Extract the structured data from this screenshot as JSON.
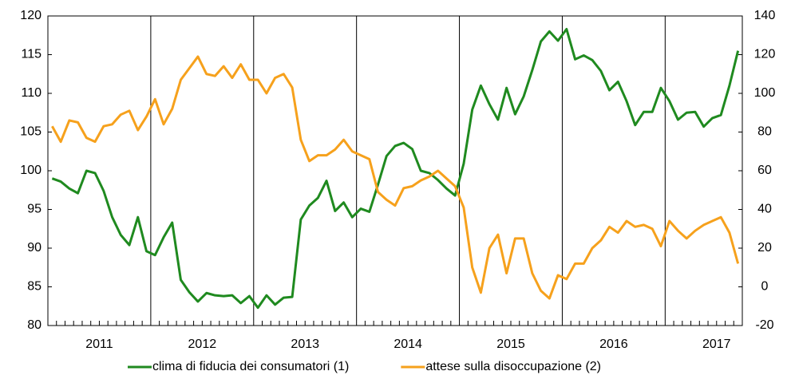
{
  "chart_data": {
    "type": "line",
    "categories": [
      null,
      null,
      null,
      null,
      null,
      null,
      "2011",
      null,
      null,
      null,
      null,
      null,
      null,
      null,
      null,
      null,
      null,
      null,
      "2012",
      null,
      null,
      null,
      null,
      null,
      null,
      null,
      null,
      null,
      null,
      null,
      "2013",
      null,
      null,
      null,
      null,
      null,
      null,
      null,
      null,
      null,
      null,
      null,
      "2014",
      null,
      null,
      null,
      null,
      null,
      null,
      null,
      null,
      null,
      null,
      null,
      "2015",
      null,
      null,
      null,
      null,
      null,
      null,
      null,
      null,
      null,
      null,
      null,
      "2016",
      null,
      null,
      null,
      null,
      null,
      null,
      null,
      null,
      null,
      null,
      null,
      "2017",
      null,
      null
    ],
    "series": [
      {
        "name": "clima di fiducia dei consumatori (1)",
        "color": "#1f8a1f",
        "axis": "y",
        "values": [
          99.0,
          98.6,
          97.7,
          97.1,
          100.0,
          99.7,
          97.4,
          94.0,
          91.7,
          90.4,
          94.0,
          89.6,
          89.1,
          91.4,
          93.3,
          85.9,
          84.3,
          83.1,
          84.2,
          83.9,
          83.8,
          83.9,
          82.9,
          83.8,
          82.3,
          83.9,
          82.7,
          83.6,
          83.7,
          93.7,
          95.5,
          96.5,
          98.7,
          94.8,
          95.9,
          94.0,
          95.1,
          94.7,
          98.2,
          101.9,
          103.2,
          103.6,
          102.8,
          100.0,
          99.7,
          98.8,
          97.7,
          96.8,
          100.9,
          107.9,
          111.0,
          108.6,
          106.6,
          110.7,
          107.3,
          109.6,
          113.0,
          116.7,
          118.0,
          116.8,
          118.3,
          114.4,
          114.9,
          114.3,
          112.9,
          110.4,
          111.5,
          109.0,
          105.9,
          107.6,
          107.6,
          110.7,
          109.0,
          106.6,
          107.5,
          107.6,
          105.7,
          106.8,
          107.2,
          111.0,
          115.5
        ]
      },
      {
        "name": "attese sulla disoccupazione (2)",
        "color": "#f6a11c",
        "axis": "y2",
        "values": [
          83,
          75,
          86,
          85,
          77,
          75,
          83,
          84,
          89,
          91,
          81,
          88,
          97,
          84,
          92,
          107,
          113,
          119,
          110,
          109,
          114,
          108,
          115,
          107,
          107,
          100,
          108,
          110,
          103,
          76,
          65,
          68,
          68,
          71,
          76,
          70,
          68,
          66,
          49,
          45,
          42,
          51,
          52,
          55,
          57,
          60,
          56,
          52,
          41,
          10,
          -3,
          20,
          27,
          7,
          25,
          25,
          7,
          -2,
          -6,
          6,
          4,
          12,
          12,
          20,
          24,
          31,
          28,
          34,
          31,
          32,
          30,
          21,
          34,
          29,
          25,
          29,
          32,
          34,
          36,
          28,
          12
        ]
      }
    ],
    "ylim": [
      80,
      120
    ],
    "yticks": [
      80,
      85,
      90,
      95,
      100,
      105,
      110,
      115,
      120
    ],
    "y2lim": [
      -20,
      140
    ],
    "y2ticks": [
      -20,
      0,
      20,
      40,
      60,
      80,
      100,
      120,
      140
    ],
    "grid": false,
    "legend": "bottom"
  }
}
